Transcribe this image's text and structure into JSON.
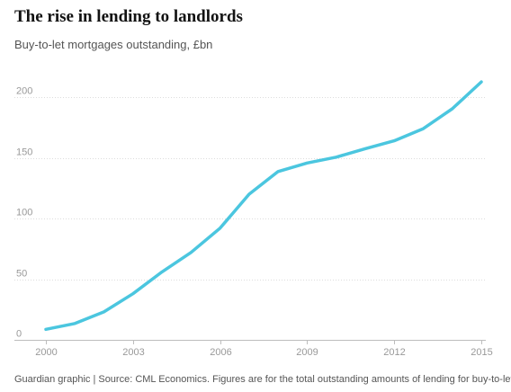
{
  "chart_data": {
    "type": "line",
    "title": "The rise in lending to landlords",
    "subtitle": "Buy-to-let mortgages outstanding, £bn",
    "xlabel": "",
    "ylabel": "",
    "x": [
      2000,
      2001,
      2002,
      2003,
      2004,
      2005,
      2006,
      2007,
      2008,
      2009,
      2010,
      2011,
      2012,
      2013,
      2014,
      2015
    ],
    "series": [
      {
        "values": [
          8.7,
          13.5,
          23,
          38,
          56,
          72,
          92,
          120,
          138.7,
          145.7,
          150.5,
          157.5,
          164,
          174,
          190.4,
          212.5
        ],
        "color": "#4bc6df"
      }
    ],
    "xlim": [
      2000,
      2015
    ],
    "ylim": [
      0,
      220
    ],
    "xticks": [
      2000,
      2003,
      2006,
      2009,
      2012,
      2015
    ],
    "yticks": [
      0,
      50,
      100,
      150,
      200
    ],
    "grid": true,
    "legend": "none",
    "source": "Guardian graphic | Source: CML Economics. Figures are for the total outstanding amounts of lending for buy-to-let"
  }
}
